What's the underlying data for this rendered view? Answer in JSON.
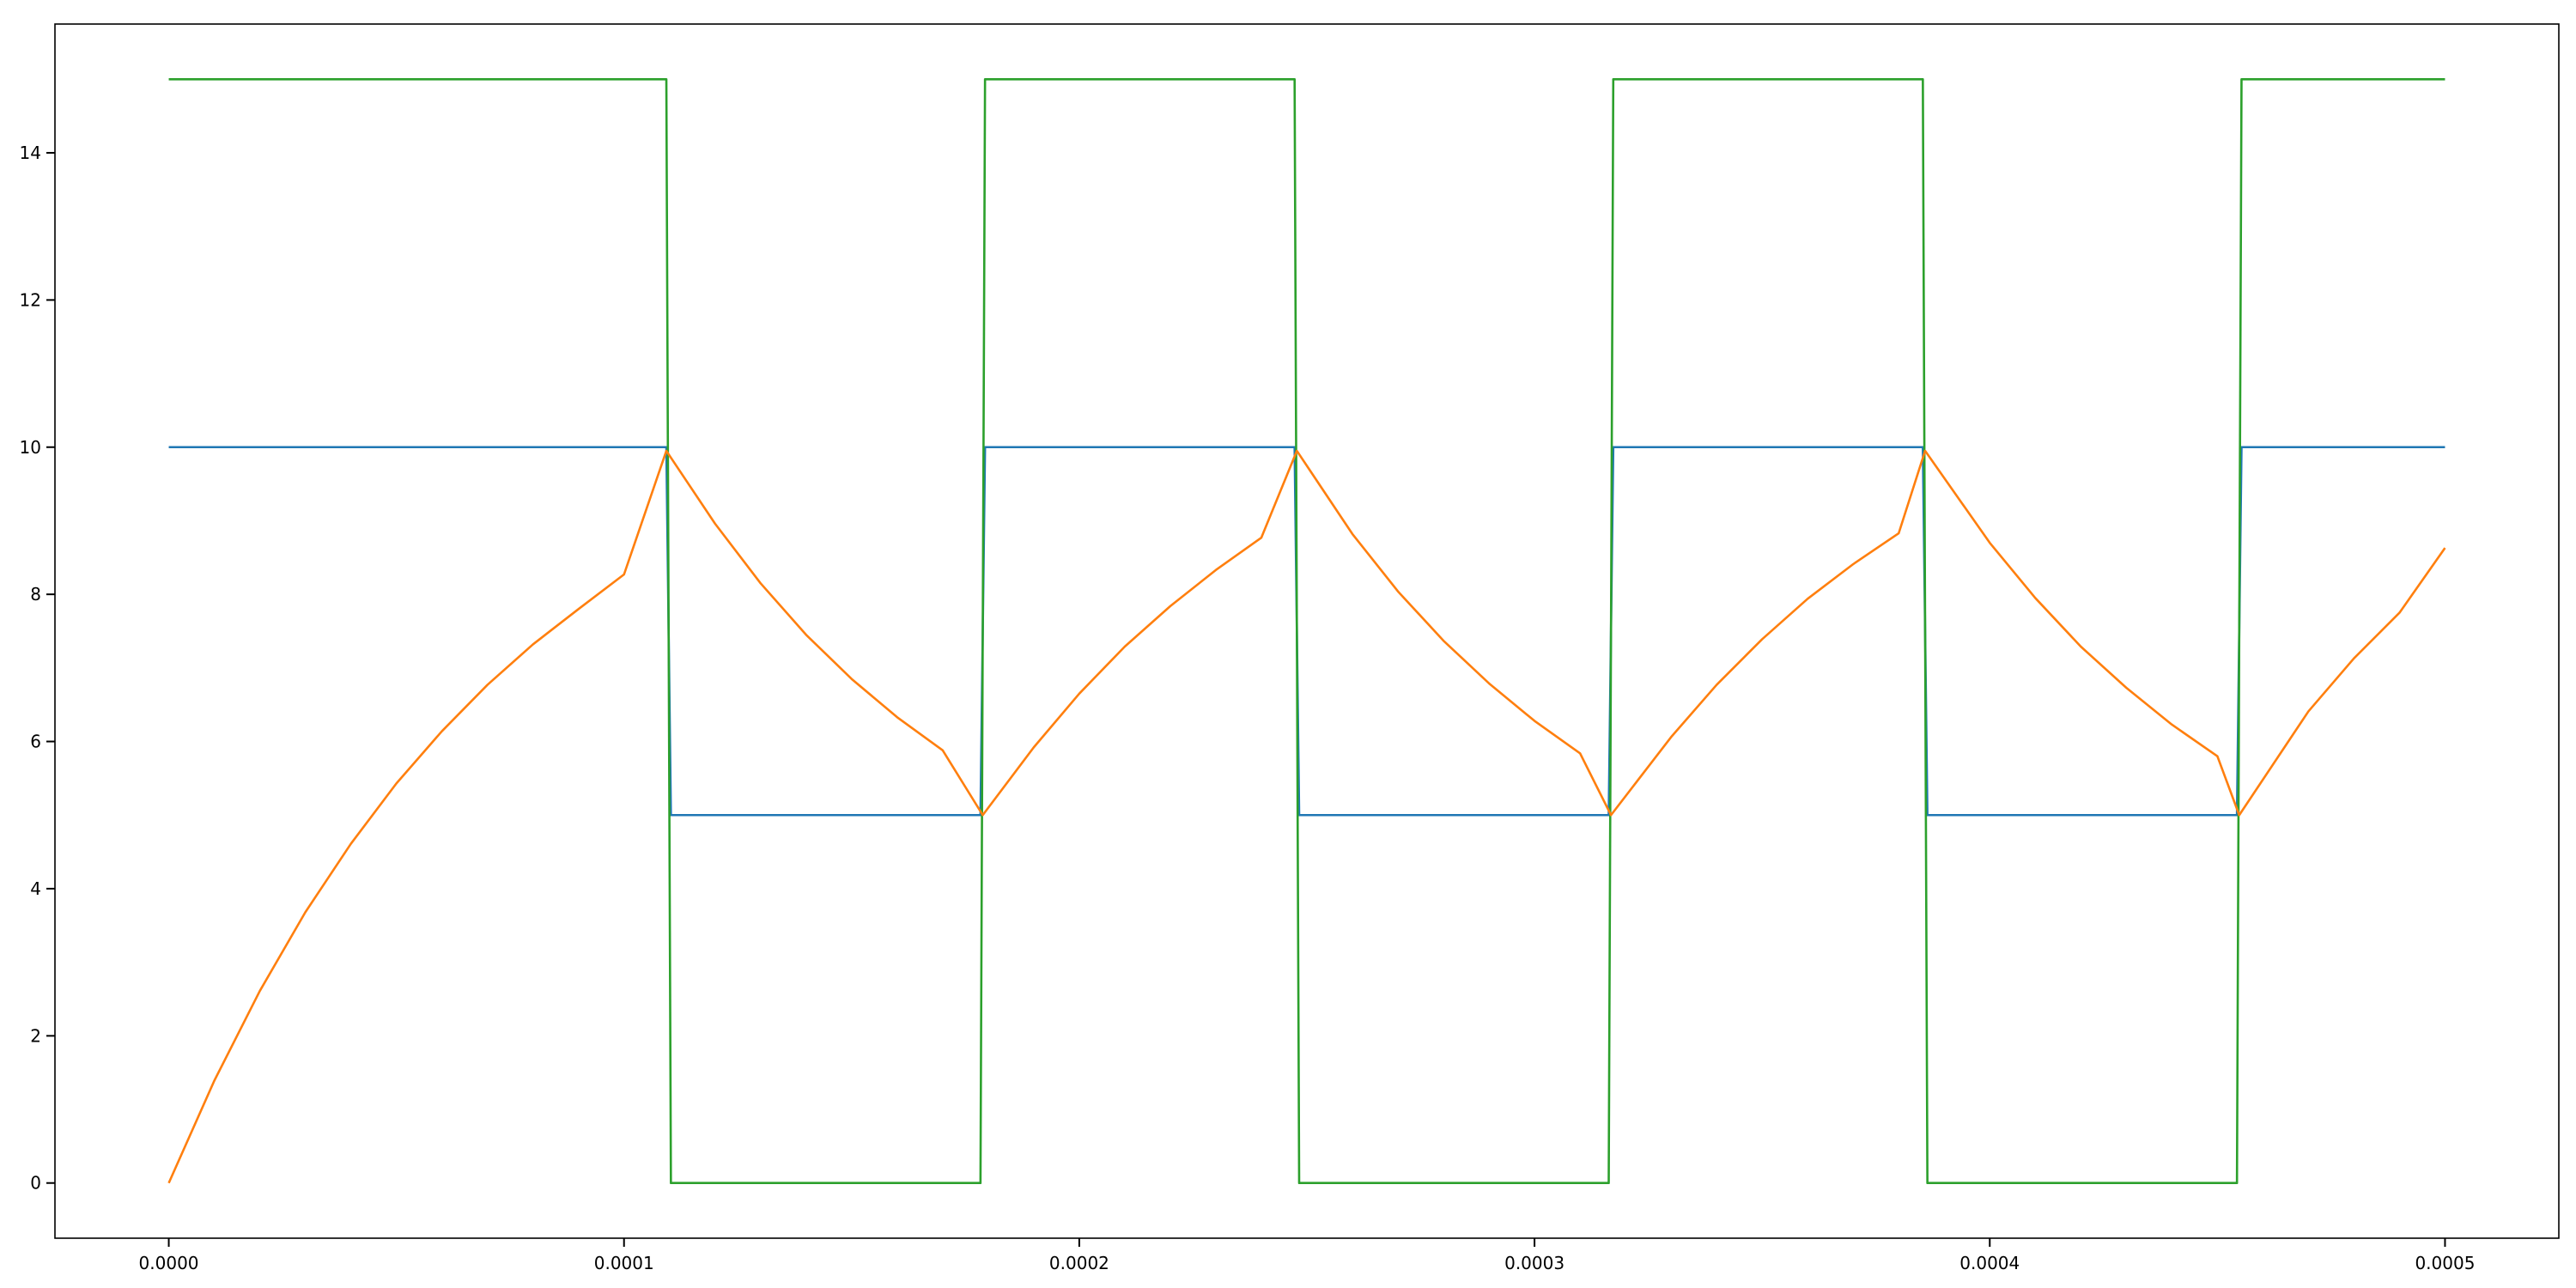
{
  "chart_data": {
    "type": "line",
    "title": "",
    "xlabel": "",
    "ylabel": "",
    "xlim": [
      -2.5e-05,
      0.000525
    ],
    "ylim": [
      -0.75,
      15.75
    ],
    "grid": false,
    "legend": "none",
    "x_ticks": [
      {
        "value": 0.0,
        "label": "0.0000"
      },
      {
        "value": 0.0001,
        "label": "0.0001"
      },
      {
        "value": 0.0002,
        "label": "0.0002"
      },
      {
        "value": 0.0003,
        "label": "0.0003"
      },
      {
        "value": 0.0004,
        "label": "0.0004"
      },
      {
        "value": 0.0005,
        "label": "0.0005"
      }
    ],
    "y_ticks": [
      {
        "value": 0,
        "label": "0"
      },
      {
        "value": 2,
        "label": "2"
      },
      {
        "value": 4,
        "label": "4"
      },
      {
        "value": 6,
        "label": "6"
      },
      {
        "value": 8,
        "label": "8"
      },
      {
        "value": 10,
        "label": "10"
      },
      {
        "value": 12,
        "label": "12"
      },
      {
        "value": 14,
        "label": "14"
      }
    ],
    "series": [
      {
        "color": "#1f77b4",
        "x": [
          0,
          0.0001093,
          0.0001103,
          0.0001783,
          0.0001793,
          0.0002473,
          0.0002483,
          0.0003163,
          0.0003173,
          0.0003853,
          0.0003863,
          0.0004543,
          0.0004553,
          0.0005
        ],
        "y": [
          10,
          10,
          5,
          5,
          10,
          10,
          5,
          5,
          10,
          10,
          5,
          5,
          10,
          10
        ]
      },
      {
        "color": "#2ca02c",
        "x": [
          0,
          0.0001093,
          0.0001103,
          0.0001783,
          0.0001793,
          0.0002473,
          0.0002483,
          0.0003163,
          0.0003173,
          0.0003853,
          0.0003863,
          0.0004543,
          0.0004553,
          0.0005
        ],
        "y": [
          15,
          15,
          0,
          0,
          15,
          15,
          0,
          0,
          15,
          15,
          0,
          0,
          15,
          15
        ]
      },
      {
        "color": "#ff7f0e",
        "x": [
          0,
          1e-05,
          2e-05,
          3e-05,
          4e-05,
          5e-05,
          6e-05,
          7e-05,
          8e-05,
          9e-05,
          0.0001,
          0.0001093,
          0.00012,
          0.00013,
          0.00014,
          0.00015,
          0.00016,
          0.00017,
          0.0001788,
          0.00019,
          0.0002,
          0.00021,
          0.00022,
          0.00023,
          0.00024,
          0.0002478,
          0.00026,
          0.00027,
          0.00028,
          0.00029,
          0.0003,
          0.00031,
          0.0003168,
          0.00033,
          0.00034,
          0.00035,
          0.00036,
          0.00037,
          0.00038,
          0.0003858,
          0.0004,
          0.00041,
          0.00042,
          0.00043,
          0.00044,
          0.00045,
          0.0004548,
          0.00047,
          0.00048,
          0.00049,
          0.0005
        ],
        "y": [
          0,
          1.39,
          2.61,
          3.68,
          4.61,
          5.43,
          6.14,
          6.77,
          7.32,
          7.8,
          8.27,
          9.95,
          8.96,
          8.15,
          7.45,
          6.85,
          6.33,
          5.88,
          5.0,
          5.92,
          6.65,
          7.29,
          7.84,
          8.33,
          8.77,
          9.95,
          8.82,
          8.04,
          7.37,
          6.79,
          6.28,
          5.84,
          5.0,
          6.06,
          6.77,
          7.39,
          7.94,
          8.41,
          8.83,
          9.95,
          8.7,
          7.95,
          7.29,
          6.73,
          6.23,
          5.8,
          5.0,
          6.41,
          7.13,
          7.75,
          8.63
        ]
      }
    ]
  }
}
